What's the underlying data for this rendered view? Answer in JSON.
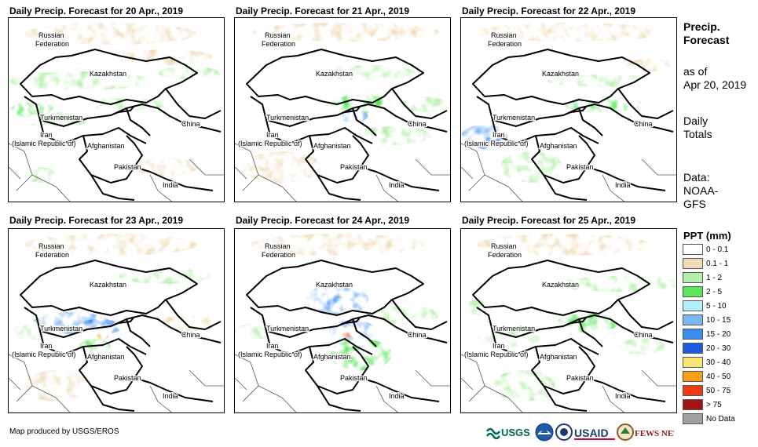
{
  "panels": [
    {
      "title": "Daily Precip. Forecast for 20 Apr., 2019"
    },
    {
      "title": "Daily Precip. Forecast for 21 Apr., 2019"
    },
    {
      "title": "Daily Precip. Forecast for 22 Apr., 2019"
    },
    {
      "title": "Daily Precip. Forecast for 23 Apr., 2019"
    },
    {
      "title": "Daily Precip. Forecast for 24 Apr., 2019"
    },
    {
      "title": "Daily Precip. Forecast for 25 Apr., 2019"
    }
  ],
  "map_labels": {
    "russia_1": "Russian",
    "russia_2": "Federation",
    "kazakhstan": "Kazakhstan",
    "turkmenistan": "Turkmenistan",
    "iran_1": "Iran",
    "iran_2": "(Islamic Republic of)",
    "afghanistan": "Afghanistan",
    "pakistan": "Pakistan",
    "china": "China",
    "india": "India"
  },
  "side_info": {
    "title_1": "Precip.",
    "title_2": "Forecast",
    "as_of": "as of",
    "date": "Apr 20, 2019",
    "daily_1": "Daily",
    "daily_2": "Totals",
    "data_1": "Data:",
    "data_2": "NOAA-",
    "data_3": "GFS"
  },
  "legend": {
    "title": "PPT (mm)",
    "items": [
      {
        "label": "0 - 0.1",
        "color": "#ffffff"
      },
      {
        "label": "0.1 - 1",
        "color": "#f0dcb9"
      },
      {
        "label": "1 - 2",
        "color": "#b3f0a8"
      },
      {
        "label": "2 - 5",
        "color": "#5ae65a"
      },
      {
        "label": "5 - 10",
        "color": "#b4f0f8"
      },
      {
        "label": "10 - 15",
        "color": "#78b4f0"
      },
      {
        "label": "15 - 20",
        "color": "#3c8cf0"
      },
      {
        "label": "20 - 30",
        "color": "#1e5adc"
      },
      {
        "label": "30 - 40",
        "color": "#f8e678"
      },
      {
        "label": "40 - 50",
        "color": "#f8a01e"
      },
      {
        "label": "50 - 75",
        "color": "#f03c14"
      },
      {
        "label": "> 75",
        "color": "#a01414"
      },
      {
        "label": "No Data",
        "color": "#a0a0a0"
      }
    ]
  },
  "credit": "Map produced by USGS/EROS",
  "logos": {
    "usgs": "USGS",
    "usaid": "USAID",
    "fewsnet": "FEWS NET"
  }
}
